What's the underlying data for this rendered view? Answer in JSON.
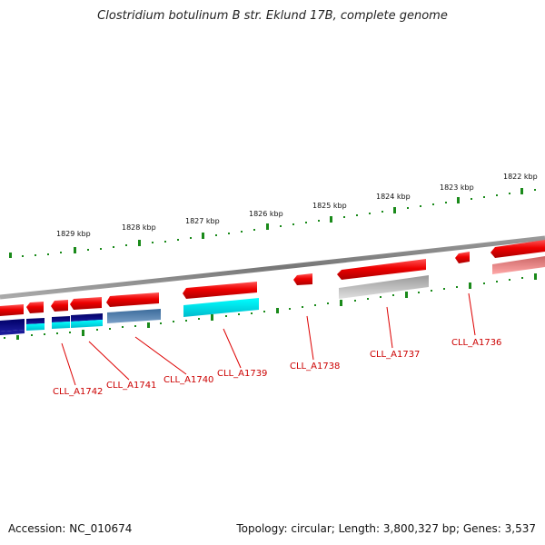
{
  "title": "Clostridium botulinum B str. Eklund 17B, complete genome",
  "footer": {
    "accession": "Accession: NC_010674",
    "topology": "Topology: circular; Length: 3,800,327 bp; Genes: 3,537"
  },
  "scale_labels": [
    "1829 kbp",
    "1828 kbp",
    "1827 kbp",
    "1826 kbp",
    "1825 kbp",
    "1824 kbp",
    "1823 kbp",
    "1822 kbp"
  ],
  "gene_labels": [
    "CLL_A1742",
    "CLL_A1741",
    "CLL_A1740",
    "CLL_A1739",
    "CLL_A1738",
    "CLL_A1737",
    "CLL_A1736"
  ],
  "colors": {
    "forward_gene": "#ee0000",
    "backbone": "#888888",
    "tick": "#1a8a1a",
    "label": "#cc0000",
    "navy": "#000080",
    "cyan": "#00e5ee",
    "steel": "#4a7aa8",
    "gray": "#b8b8b8",
    "pink": "#f08080"
  }
}
